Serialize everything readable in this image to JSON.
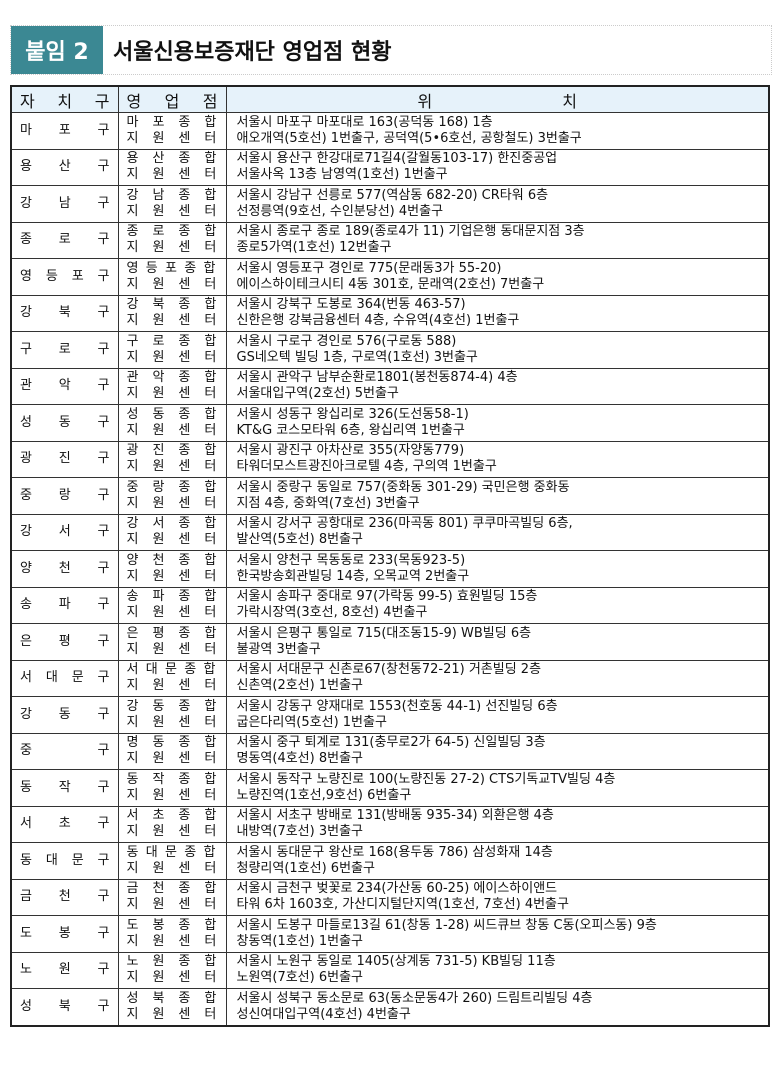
{
  "title": {
    "label": "붙임 2",
    "text": "서울신용보증재단 영업점 현황"
  },
  "columns": [
    "자치구",
    "영업점",
    "위치"
  ],
  "rows": [
    {
      "district": "마포구",
      "branch": [
        "마포종합",
        "지원센터"
      ],
      "location": [
        "서울시 마포구 마포대로 163(공덕동 168)  1층",
        "애오개역(5호선) 1번출구, 공덕역(5•6호선, 공항철도) 3번출구"
      ]
    },
    {
      "district": "용산구",
      "branch": [
        "용산종합",
        "지원센터"
      ],
      "location": [
        "서울시 용산구 한강대로71길4(갈월동103-17) 한진중공업",
        "서울사옥 13층 남영역(1호선) 1번출구"
      ]
    },
    {
      "district": "강남구",
      "branch": [
        "강남종합",
        "지원센터"
      ],
      "location": [
        "서울시 강남구 선릉로 577(역삼동 682-20) CR타워 6층",
        "선정릉역(9호선, 수인분당선) 4번출구"
      ]
    },
    {
      "district": "종로구",
      "branch": [
        "종로종합",
        "지원센터"
      ],
      "location": [
        "서울시 종로구 종로 189(종로4가 11) 기업은행 동대문지점 3층",
        "종로5가역(1호선) 12번출구"
      ]
    },
    {
      "district": "영등포구",
      "branch": [
        "영등포종합",
        "지원센터"
      ],
      "location": [
        "서울시 영등포구 경인로 775(문래동3가 55-20)",
        "에이스하이테크시티 4동 301호, 문래역(2호선) 7번출구"
      ]
    },
    {
      "district": "강북구",
      "branch": [
        "강북종합",
        "지원센터"
      ],
      "location": [
        "서울시 강북구 도봉로 364(번동 463-57)",
        "신한은행 강북금융센터 4층, 수유역(4호선) 1번출구"
      ]
    },
    {
      "district": "구로구",
      "branch": [
        "구로종합",
        "지원센터"
      ],
      "location": [
        "서울시 구로구 경인로 576(구로동 588)",
        "GS네오텍 빌딩 1층, 구로역(1호선) 3번출구"
      ]
    },
    {
      "district": "관악구",
      "branch": [
        "관악종합",
        "지원센터"
      ],
      "location": [
        "서울시 관악구 남부순환로1801(봉천동874-4) 4층",
        "서울대입구역(2호선) 5번출구"
      ]
    },
    {
      "district": "성동구",
      "branch": [
        "성동종합",
        "지원센터"
      ],
      "location": [
        "서울시 성동구 왕십리로 326(도선동58-1)",
        "KT&G 코스모타워 6층, 왕십리역 1번출구"
      ]
    },
    {
      "district": "광진구",
      "branch": [
        "광진종합",
        "지원센터"
      ],
      "location": [
        "서울시 광진구 아차산로 355(자양동779)",
        "타워더모스트광진아크로텔 4층, 구의역 1번출구"
      ]
    },
    {
      "district": "중랑구",
      "branch": [
        "중랑종합",
        "지원센터"
      ],
      "location": [
        "서울시 중랑구 동일로 757(중화동 301-29) 국민은행 중화동",
        "지점 4층, 중화역(7호선) 3번출구"
      ]
    },
    {
      "district": "강서구",
      "branch": [
        "강서종합",
        "지원센터"
      ],
      "location": [
        "서울시 강서구 공항대로 236(마곡동 801) 쿠쿠마곡빌딩 6층,",
        "발산역(5호선) 8번출구"
      ]
    },
    {
      "district": "양천구",
      "branch": [
        "양천종합",
        "지원센터"
      ],
      "location": [
        "서울시 양천구 목동동로 233(목동923-5)",
        "한국방송회관빌딩 14층, 오목교역 2번출구"
      ]
    },
    {
      "district": "송파구",
      "branch": [
        "송파종합",
        "지원센터"
      ],
      "location": [
        "서울시 송파구 중대로 97(가락동 99-5) 효원빌딩 15층",
        "가락시장역(3호선, 8호선) 4번출구"
      ]
    },
    {
      "district": "은평구",
      "branch": [
        "은평종합",
        "지원센터"
      ],
      "location": [
        "서울시 은평구 통일로 715(대조동15-9) WB빌딩 6층",
        "불광역 3번출구"
      ]
    },
    {
      "district": "서대문구",
      "branch": [
        "서대문종합",
        "지원센터"
      ],
      "location": [
        "서울시 서대문구 신촌로67(창천동72-21) 거촌빌딩 2층",
        "신촌역(2호선) 1번출구"
      ]
    },
    {
      "district": "강동구",
      "branch": [
        "강동종합",
        "지원센터"
      ],
      "location": [
        "서울시 강동구 양재대로 1553(천호동 44-1) 선진빌딩 6층",
        "굽은다리역(5호선) 1번출구"
      ]
    },
    {
      "district": "중구",
      "branch": [
        "명동종합",
        "지원센터"
      ],
      "location": [
        "서울시 중구 퇴계로 131(충무로2가 64-5) 신일빌딩 3층",
        "명동역(4호선) 8번출구"
      ]
    },
    {
      "district": "동작구",
      "branch": [
        "동작종합",
        "지원센터"
      ],
      "location": [
        "서울시 동작구 노량진로 100(노량진동 27-2) CTS기독교TV빌딩 4층",
        "노량진역(1호선,9호선) 6번출구"
      ]
    },
    {
      "district": "서초구",
      "branch": [
        "서초종합",
        "지원센터"
      ],
      "location": [
        "서울시 서초구 방배로 131(방배동 935-34) 외환은행 4층",
        "내방역(7호선) 3번출구"
      ]
    },
    {
      "district": "동대문구",
      "branch": [
        "동대문종합",
        "지원센터"
      ],
      "location": [
        "서울시 동대문구 왕산로 168(용두동 786) 삼성화재 14층",
        "청량리역(1호선) 6번출구"
      ]
    },
    {
      "district": "금천구",
      "branch": [
        "금천종합",
        "지원센터"
      ],
      "location": [
        "서울시 금천구 벚꽃로 234(가산동 60-25) 에이스하이앤드",
        "타워 6차 1603호, 가산디지털단지역(1호선, 7호선) 4번출구"
      ]
    },
    {
      "district": "도봉구",
      "branch": [
        "도봉종합",
        "지원센터"
      ],
      "location": [
        "서울시 도봉구 마들로13길 61(창동 1-28) 씨드큐브 창동 C동(오피스동) 9층",
        "창동역(1호선) 1번출구"
      ]
    },
    {
      "district": "노원구",
      "branch": [
        "노원종합",
        "지원센터"
      ],
      "location": [
        "서울시 노원구 동일로 1405(상계동 731-5) KB빌딩 11층",
        "노원역(7호선) 6번출구"
      ]
    },
    {
      "district": "성북구",
      "branch": [
        "성북종합",
        "지원센터"
      ],
      "location": [
        "서울시 성북구 동소문로 63(동소문동4가 260) 드림트리빌딩 4층",
        "성신여대입구역(4호선) 4번출구"
      ]
    }
  ]
}
